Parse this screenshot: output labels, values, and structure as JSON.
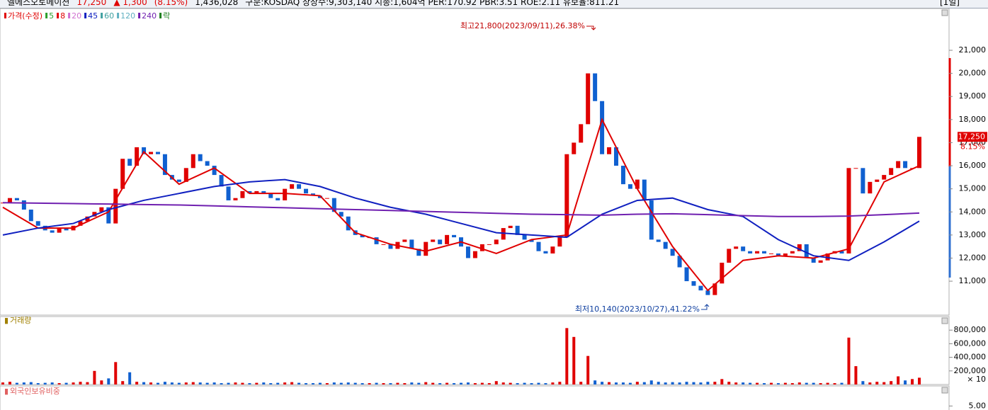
{
  "header": {
    "items": [
      {
        "text": "엘에스오토메이션",
        "color": "#000000"
      },
      {
        "text": "17,250",
        "color": "#e00000"
      },
      {
        "text": "▲ 1,300",
        "color": "#e00000"
      },
      {
        "text": "(8.15%)",
        "color": "#e00000"
      },
      {
        "text": "1,436,028",
        "color": "#000000"
      },
      {
        "text": "구분:KOSDAQ 상장수:9,303,140 시총:1,604억 PER:170.92 PBR:3.51 ROE:2.11 유보율:811.21",
        "color": "#000000"
      }
    ],
    "period": "[1일]"
  },
  "price_panel": {
    "legend": [
      {
        "label": "가격(수정)",
        "color": "#e00000"
      },
      {
        "label": "5",
        "color": "#2ca02c"
      },
      {
        "label": "8",
        "color": "#e00000"
      },
      {
        "label": "20",
        "color": "#d070d0"
      },
      {
        "label": "45",
        "color": "#1020c0"
      },
      {
        "label": "60",
        "color": "#40a0a0"
      },
      {
        "label": "120",
        "color": "#60b0c0"
      },
      {
        "label": "240",
        "color": "#7020b0"
      },
      {
        "label": "락",
        "color": "#208020"
      }
    ],
    "ylim": [
      9530,
      22810
    ],
    "yticks": [
      {
        "value": 11000,
        "label": "11,000"
      },
      {
        "value": 12000,
        "label": "12,000"
      },
      {
        "value": 13000,
        "label": "13,000"
      },
      {
        "value": 14000,
        "label": "14,000"
      },
      {
        "value": 15000,
        "label": "15,000"
      },
      {
        "value": 16000,
        "label": "16,000"
      },
      {
        "value": 17000,
        "label": "17,000"
      },
      {
        "value": 18000,
        "label": "18,000"
      },
      {
        "value": 19000,
        "label": "19,000"
      },
      {
        "value": 20000,
        "label": "20,000"
      },
      {
        "value": 21000,
        "label": "21,000"
      }
    ],
    "up_color": "#e00000",
    "down_color": "#1060d0",
    "closes": [
      14400,
      14600,
      14500,
      14100,
      13600,
      13400,
      13200,
      13100,
      13300,
      13200,
      13400,
      13600,
      13800,
      14000,
      14200,
      13500,
      15000,
      16300,
      16000,
      16800,
      16500,
      16600,
      16500,
      15600,
      15400,
      15300,
      15900,
      16500,
      16200,
      16000,
      15600,
      15100,
      14500,
      14600,
      14900,
      14800,
      14900,
      14800,
      14600,
      14500,
      15000,
      15200,
      15000,
      14800,
      14700,
      14600,
      14600,
      14000,
      13800,
      13200,
      13000,
      12900,
      12900,
      12600,
      12600,
      12400,
      12700,
      12800,
      12400,
      12100,
      12700,
      12800,
      12600,
      13000,
      12900,
      12500,
      12000,
      12300,
      12600,
      12600,
      12800,
      13300,
      13400,
      13000,
      12800,
      12700,
      12300,
      12200,
      12500,
      12900,
      16500,
      17000,
      17800,
      20000,
      18800,
      16500,
      16800,
      16000,
      15200,
      15000,
      15400,
      14500,
      12800,
      12700,
      12400,
      12100,
      11600,
      11000,
      10800,
      10600,
      10400,
      10900,
      11800,
      12400,
      12500,
      12300,
      12200,
      12300,
      12200,
      12200,
      12100,
      12200,
      12300,
      12600,
      12000,
      11800,
      11900,
      12200,
      12300,
      12200,
      15900,
      15900,
      14800,
      15300,
      15400,
      15600,
      15900,
      16200,
      15900,
      15900,
      17250
    ],
    "moving_averages": [
      {
        "color": "#e00000",
        "values": [
          14200,
          13300,
          13300,
          14000,
          16600,
          15200,
          15900,
          14800,
          14800,
          14700,
          13100,
          12600,
          12300,
          12700,
          12200,
          12800,
          13000,
          18000,
          15000,
          12500,
          10600,
          11900,
          12100,
          12000,
          12400,
          15300,
          16000
        ]
      },
      {
        "color": "#1020c0",
        "values": [
          13000,
          13300,
          13500,
          14100,
          14500,
          14800,
          15100,
          15300,
          15400,
          15100,
          14600,
          14200,
          13900,
          13500,
          13100,
          13000,
          12900,
          13900,
          14500,
          14600,
          14100,
          13800,
          12800,
          12100,
          11900,
          12700,
          13600
        ]
      },
      {
        "color": "#7020b0",
        "values": [
          14400,
          14380,
          14360,
          14340,
          14320,
          14300,
          14260,
          14220,
          14180,
          14140,
          14100,
          14060,
          14020,
          13980,
          13940,
          13900,
          13880,
          13860,
          13900,
          13920,
          13880,
          13840,
          13800,
          13800,
          13820,
          13880,
          13950
        ]
      }
    ],
    "annotations": [
      "최고21,800(2023/09/11),26.38%",
      "최저10,140(2023/10/27),41.22%"
    ],
    "last_price": {
      "value": 17250,
      "label": "17,250",
      "change": "8.15%"
    }
  },
  "volume_panel": {
    "title": "거래량",
    "ylim": [
      0,
      1000000
    ],
    "yticks": [
      {
        "value": 200000,
        "label": "200,000"
      },
      {
        "value": 400000,
        "label": "400,000"
      },
      {
        "value": 600000,
        "label": "600,000"
      },
      {
        "value": 800000,
        "label": "800,000"
      }
    ],
    "multiplier": "× 10",
    "values": [
      30000,
      40000,
      25000,
      30000,
      35000,
      20000,
      25000,
      30000,
      20000,
      25000,
      30000,
      40000,
      35000,
      200000,
      60000,
      90000,
      330000,
      50000,
      180000,
      40000,
      35000,
      30000,
      25000,
      40000,
      30000,
      25000,
      30000,
      35000,
      30000,
      25000,
      30000,
      20000,
      25000,
      30000,
      25000,
      20000,
      25000,
      30000,
      20000,
      25000,
      30000,
      35000,
      25000,
      20000,
      20000,
      25000,
      20000,
      30000,
      25000,
      30000,
      25000,
      20000,
      20000,
      25000,
      20000,
      20000,
      25000,
      20000,
      30000,
      25000,
      35000,
      25000,
      20000,
      25000,
      20000,
      25000,
      30000,
      20000,
      25000,
      20000,
      50000,
      30000,
      25000,
      20000,
      25000,
      20000,
      25000,
      20000,
      30000,
      40000,
      830000,
      700000,
      40000,
      420000,
      60000,
      40000,
      35000,
      30000,
      30000,
      25000,
      40000,
      35000,
      60000,
      40000,
      30000,
      35000,
      30000,
      40000,
      35000,
      30000,
      40000,
      40000,
      80000,
      40000,
      30000,
      30000,
      25000,
      25000,
      20000,
      25000,
      20000,
      25000,
      20000,
      30000,
      25000,
      25000,
      20000,
      25000,
      20000,
      25000,
      690000,
      270000,
      50000,
      30000,
      40000,
      35000,
      50000,
      120000,
      60000,
      80000,
      100000
    ]
  },
  "foreign_panel": {
    "title": "외국인보유비중",
    "ylim": [
      4.9,
      5.5
    ],
    "yticks": [
      {
        "value": 5,
        "label": "5.00"
      }
    ]
  }
}
